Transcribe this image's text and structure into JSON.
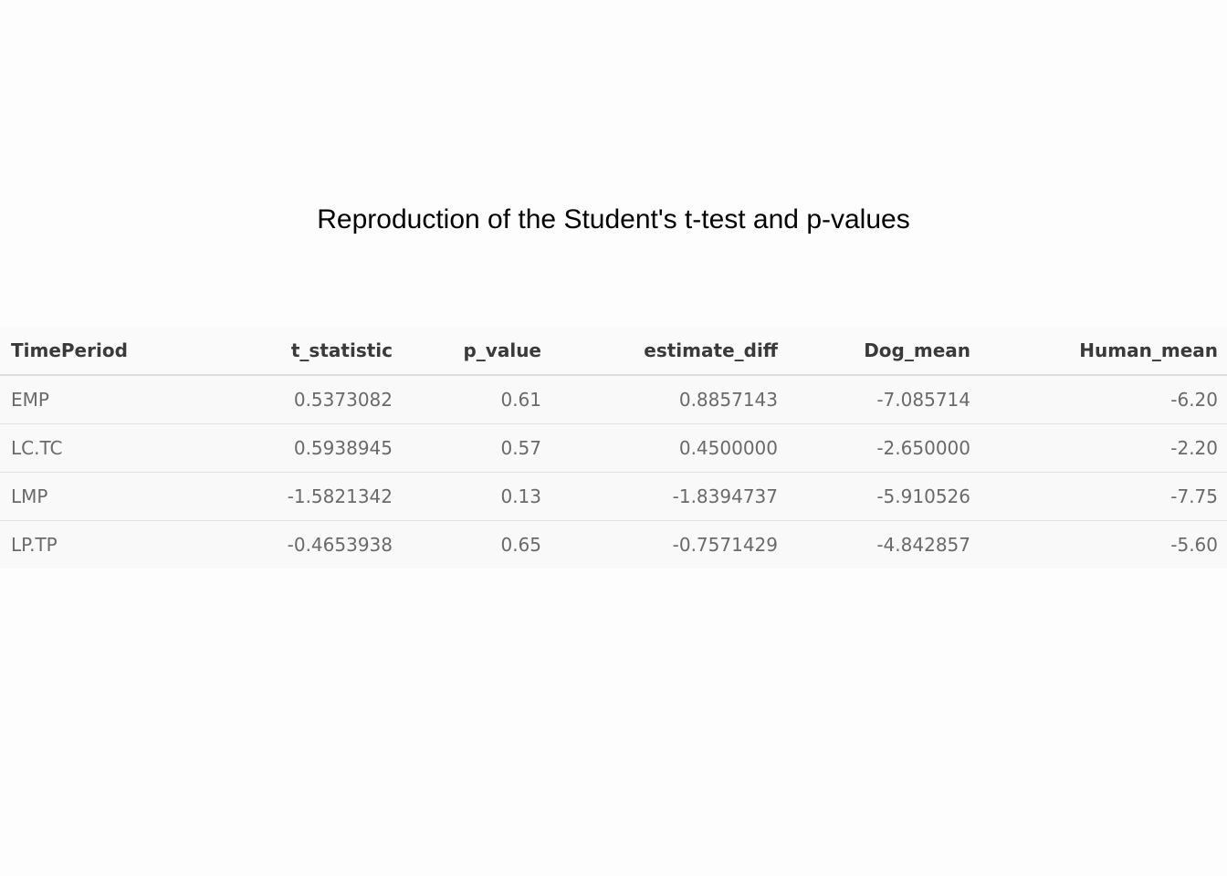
{
  "title": "Reproduction of the Student's t-test and p-values",
  "table": {
    "columns": [
      "TimePeriod",
      "t_statistic",
      "p_value",
      "estimate_diff",
      "Dog_mean",
      "Human_mean"
    ],
    "rows": [
      [
        "EMP",
        "0.5373082",
        "0.61",
        "0.8857143",
        "-7.085714",
        "-6.20"
      ],
      [
        "LC.TC",
        "0.5938945",
        "0.57",
        "0.4500000",
        "-2.650000",
        "-2.20"
      ],
      [
        "LMP",
        "-1.5821342",
        "0.13",
        "-1.8394737",
        "-5.910526",
        "-7.75"
      ],
      [
        "LP.TP",
        "-0.4653938",
        "0.65",
        "-0.7571429",
        "-4.842857",
        "-5.60"
      ]
    ]
  }
}
